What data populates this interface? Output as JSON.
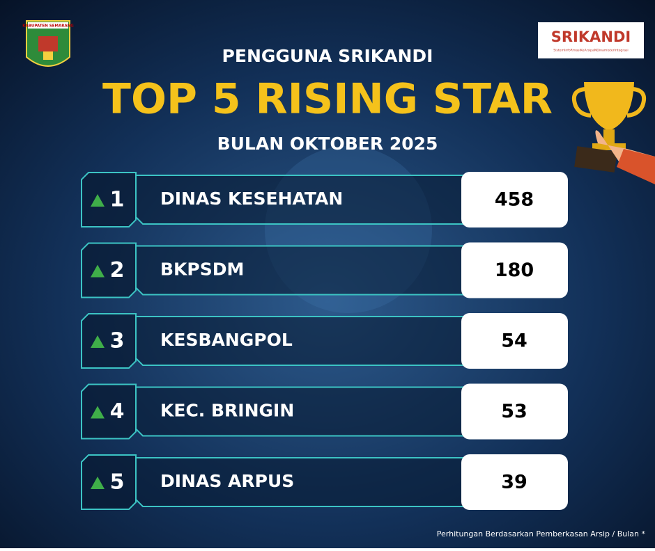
{
  "header": {
    "logo_left": "KABUPATEN SEMARANG",
    "logo_right": "SRIKANDI",
    "logo_right_tagline": "SistemInfoRmasiKeArsipaNDinamisterIntegrasi",
    "subtitle": "PENGGUNA SRIKANDI",
    "title": "TOP 5 RISING STAR",
    "period": "BULAN OKTOBER 2025"
  },
  "rows": [
    {
      "rank": "1",
      "name": "DINAS KESEHATAN",
      "value": "458"
    },
    {
      "rank": "2",
      "name": "BKPSDM",
      "value": "180"
    },
    {
      "rank": "3",
      "name": "KESBANGPOL",
      "value": "54"
    },
    {
      "rank": "4",
      "name": "KEC. BRINGIN",
      "value": "53"
    },
    {
      "rank": "5",
      "name": "DINAS ARPUS",
      "value": "39"
    }
  ],
  "footnote": "Perhitungan Berdasarkan Pemberkasan Arsip / Bulan *"
}
